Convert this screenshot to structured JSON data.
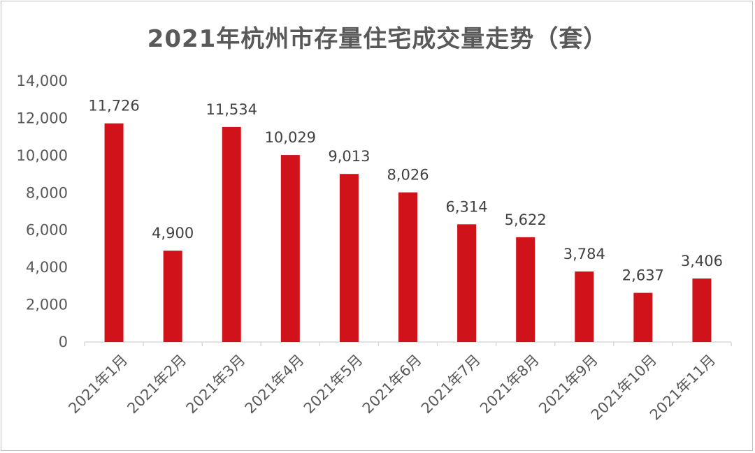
{
  "chart_data": {
    "type": "bar",
    "title": "2021年杭州市存量住宅成交量走势（套）",
    "categories": [
      "2021年1月",
      "2021年2月",
      "2021年3月",
      "2021年4月",
      "2021年5月",
      "2021年6月",
      "2021年7月",
      "2021年8月",
      "2021年9月",
      "2021年10月",
      "2021年11月"
    ],
    "series": [
      {
        "values": [
          11726,
          4900,
          11534,
          10029,
          9013,
          8026,
          6314,
          5622,
          3784,
          2637,
          3406
        ],
        "data_labels": [
          "11,726",
          "4,900",
          "11,534",
          "10,029",
          "9,013",
          "8,026",
          "6,314",
          "5,622",
          "3,784",
          "2,637",
          "3,406"
        ],
        "color": "#d0121b"
      }
    ],
    "ylim": [
      0,
      14000
    ],
    "yticks": [
      0,
      2000,
      4000,
      6000,
      8000,
      10000,
      12000,
      14000
    ],
    "ytick_labels": [
      "0",
      "2,000",
      "4,000",
      "6,000",
      "8,000",
      "10,000",
      "12,000",
      "14,000"
    ],
    "xlabel": "",
    "ylabel": "",
    "grid": false,
    "legend": false
  }
}
